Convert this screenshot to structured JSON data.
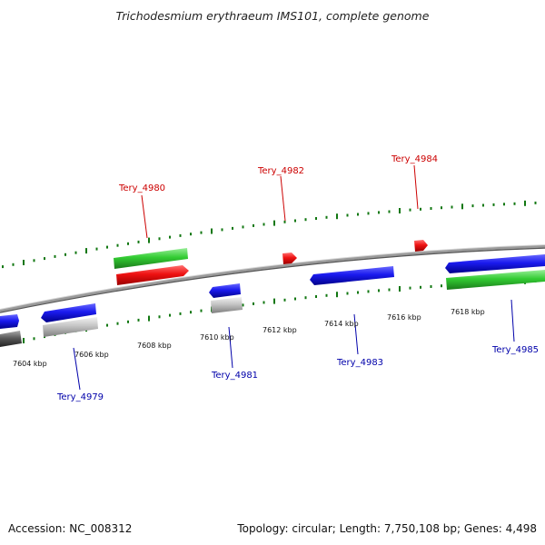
{
  "title": "Trichodesmium erythraeum IMS101, complete genome",
  "footer": {
    "accession": "Accession: NC_008312",
    "topology": "Topology: circular; Length: 7,750,108 bp; Genes: 4,498"
  },
  "colors": {
    "forward_label": "#cc0000",
    "reverse_label": "#0000aa",
    "cds_blue": "#1a1aee",
    "cds_green": "#33cc33",
    "cds_red": "#ee1111",
    "cds_gray": "#bbbbbb",
    "cds_dark": "#555555",
    "backbone": "#888888",
    "gc_track": "#117711"
  },
  "ticks": [
    {
      "label": "7604 kbp"
    },
    {
      "label": "7606 kbp"
    },
    {
      "label": "7608 kbp"
    },
    {
      "label": "7610 kbp"
    },
    {
      "label": "7612 kbp"
    },
    {
      "label": "7614 kbp"
    },
    {
      "label": "7616 kbp"
    },
    {
      "label": "7618 kbp"
    }
  ],
  "genes": {
    "forward": [
      {
        "name": "Tery_4980"
      },
      {
        "name": "Tery_4982"
      },
      {
        "name": "Tery_4984"
      }
    ],
    "reverse": [
      {
        "name": "Tery_4979"
      },
      {
        "name": "Tery_4981"
      },
      {
        "name": "Tery_4983"
      },
      {
        "name": "Tery_4985"
      }
    ]
  }
}
